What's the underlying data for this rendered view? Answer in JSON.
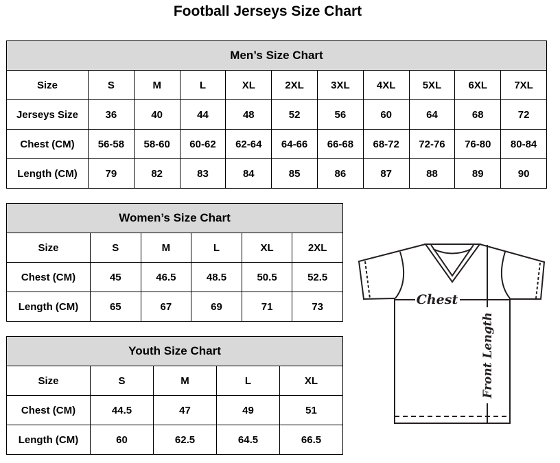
{
  "title": "Football Jerseys Size Chart",
  "men": {
    "heading": "Men’s Size Chart",
    "rows": [
      [
        "Size",
        "S",
        "M",
        "L",
        "XL",
        "2XL",
        "3XL",
        "4XL",
        "5XL",
        "6XL",
        "7XL"
      ],
      [
        "Jerseys Size",
        "36",
        "40",
        "44",
        "48",
        "52",
        "56",
        "60",
        "64",
        "68",
        "72"
      ],
      [
        "Chest (CM)",
        "56-58",
        "58-60",
        "60-62",
        "62-64",
        "64-66",
        "66-68",
        "68-72",
        "72-76",
        "76-80",
        "80-84"
      ],
      [
        "Length (CM)",
        "79",
        "82",
        "83",
        "84",
        "85",
        "86",
        "87",
        "88",
        "89",
        "90"
      ]
    ]
  },
  "women": {
    "heading": "Women’s Size Chart",
    "rows": [
      [
        "Size",
        "S",
        "M",
        "L",
        "XL",
        "2XL"
      ],
      [
        "Chest (CM)",
        "45",
        "46.5",
        "48.5",
        "50.5",
        "52.5"
      ],
      [
        "Length (CM)",
        "65",
        "67",
        "69",
        "71",
        "73"
      ]
    ]
  },
  "youth": {
    "heading": "Youth Size Chart",
    "rows": [
      [
        "Size",
        "S",
        "M",
        "L",
        "XL"
      ],
      [
        "Chest (CM)",
        "44.5",
        "47",
        "49",
        "51"
      ],
      [
        "Length (CM)",
        "60",
        "62.5",
        "64.5",
        "66.5"
      ]
    ]
  },
  "diagram": {
    "chest_label": "Chest",
    "length_label": "Front Length"
  },
  "colors": {
    "header_bg": "#d9d9d9",
    "border": "#000000"
  }
}
